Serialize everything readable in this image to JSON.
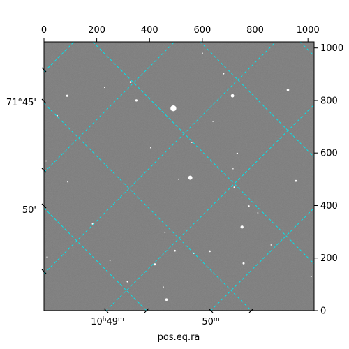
{
  "figure": {
    "colors": {
      "background": "#ffffff",
      "sky": "#7a7a7a",
      "grid": "#00e5ee",
      "frame": "#000000",
      "star": "#ffffff"
    },
    "pixel_axis_top": {
      "ticks": [
        "0",
        "200",
        "400",
        "600",
        "800",
        "1000"
      ],
      "values": [
        0,
        200,
        400,
        600,
        800,
        1000
      ],
      "range": [
        0,
        1023
      ]
    },
    "pixel_axis_right": {
      "ticks": [
        "0",
        "200",
        "400",
        "600",
        "800",
        "1000"
      ],
      "values": [
        0,
        200,
        400,
        600,
        800,
        1000
      ],
      "range": [
        0,
        1023
      ]
    },
    "dec_axis_left": {
      "ticks": [
        "71°45'",
        "50'"
      ]
    },
    "ra_axis_bottom": {
      "ticks": [
        {
          "base": "10",
          "sup1": "h",
          "mid": "49",
          "sup2": "m"
        },
        {
          "base": "50",
          "sup1": "m",
          "mid": "",
          "sup2": ""
        }
      ],
      "title": "pos.eq.ra"
    },
    "stars": [
      {
        "x": 490,
        "y": 770,
        "r": 4.2
      },
      {
        "x": 554,
        "y": 506,
        "r": 3.0
      },
      {
        "x": 714,
        "y": 818,
        "r": 2.4
      },
      {
        "x": 750,
        "y": 318,
        "r": 2.2
      },
      {
        "x": 924,
        "y": 840,
        "r": 1.8
      },
      {
        "x": 350,
        "y": 800,
        "r": 1.6
      },
      {
        "x": 88,
        "y": 818,
        "r": 1.6
      },
      {
        "x": 464,
        "y": 42,
        "r": 1.8
      },
      {
        "x": 420,
        "y": 176,
        "r": 1.5
      },
      {
        "x": 756,
        "y": 180,
        "r": 1.5
      },
      {
        "x": 954,
        "y": 494,
        "r": 1.4
      },
      {
        "x": 628,
        "y": 226,
        "r": 1.3
      },
      {
        "x": 496,
        "y": 228,
        "r": 1.3
      },
      {
        "x": 732,
        "y": 598,
        "r": 1.2
      },
      {
        "x": 328,
        "y": 870,
        "r": 1.3
      },
      {
        "x": 680,
        "y": 902,
        "r": 1.2
      },
      {
        "x": 568,
        "y": 218,
        "r": 1.1
      },
      {
        "x": 776,
        "y": 398,
        "r": 1.1
      },
      {
        "x": 184,
        "y": 330,
        "r": 1.1
      },
      {
        "x": 230,
        "y": 850,
        "r": 1.0
      },
      {
        "x": 50,
        "y": 742,
        "r": 1.0
      },
      {
        "x": 12,
        "y": 204,
        "r": 1.0
      },
      {
        "x": 8,
        "y": 570,
        "r": 0.9
      },
      {
        "x": 316,
        "y": 110,
        "r": 1.0
      },
      {
        "x": 458,
        "y": 298,
        "r": 1.0
      },
      {
        "x": 810,
        "y": 372,
        "r": 0.9
      },
      {
        "x": 720,
        "y": 470,
        "r": 0.9
      },
      {
        "x": 510,
        "y": 500,
        "r": 0.9
      },
      {
        "x": 640,
        "y": 720,
        "r": 0.8
      },
      {
        "x": 1012,
        "y": 130,
        "r": 0.9
      },
      {
        "x": 560,
        "y": 640,
        "r": 0.8
      },
      {
        "x": 250,
        "y": 190,
        "r": 0.8
      },
      {
        "x": 860,
        "y": 250,
        "r": 0.8
      },
      {
        "x": 404,
        "y": 620,
        "r": 0.8
      },
      {
        "x": 90,
        "y": 490,
        "r": 0.8
      },
      {
        "x": 600,
        "y": 980,
        "r": 0.8
      },
      {
        "x": 452,
        "y": 90,
        "r": 0.8
      },
      {
        "x": 716,
        "y": 540,
        "r": 0.8
      }
    ]
  }
}
